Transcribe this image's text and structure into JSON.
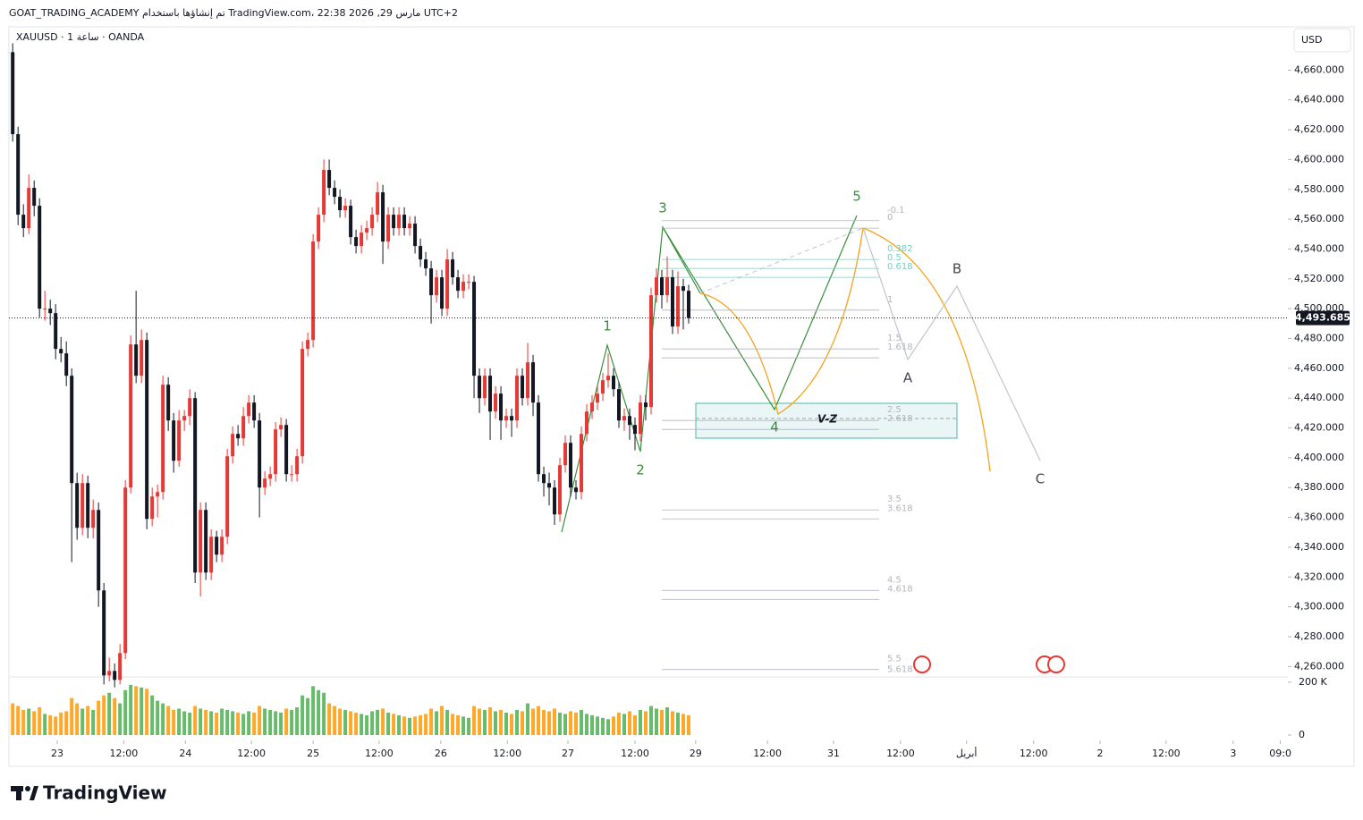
{
  "header": "GOAT_TRADING_ACADEMY تم إنشاؤها باستخدام TradingView.com، 22:38 2026 ,29 مارس UTC+2",
  "symbol": "XAUUSD · 1 ساعة · OANDA",
  "currency": "USD",
  "logo": "TradingView",
  "chart_data": {
    "type": "candlestick",
    "up_color": "#e53935",
    "down_color": "#131722",
    "ylim": [
      4253,
      4689
    ],
    "yticks": [
      {
        "value": 4660,
        "label": "4,660.000"
      },
      {
        "value": 4640,
        "label": "4,640.000"
      },
      {
        "value": 4620,
        "label": "4,620.000"
      },
      {
        "value": 4600,
        "label": "4,600.000"
      },
      {
        "value": 4580,
        "label": "4,580.000"
      },
      {
        "value": 4560,
        "label": "4,560.000"
      },
      {
        "value": 4540,
        "label": "4,540.000"
      },
      {
        "value": 4520,
        "label": "4,520.000"
      },
      {
        "value": 4500,
        "label": "4,500.000"
      },
      {
        "value": 4480,
        "label": "4,480.000"
      },
      {
        "value": 4460,
        "label": "4,460.000"
      },
      {
        "value": 4440,
        "label": "4,440.000"
      },
      {
        "value": 4420,
        "label": "4,420.000"
      },
      {
        "value": 4400,
        "label": "4,400.000"
      },
      {
        "value": 4380,
        "label": "4,380.000"
      },
      {
        "value": 4360,
        "label": "4,360.000"
      },
      {
        "value": 4340,
        "label": "4,340.000"
      },
      {
        "value": 4320,
        "label": "4,320.000"
      },
      {
        "value": 4300,
        "label": "4,300.000"
      },
      {
        "value": 4280,
        "label": "4,280.000"
      },
      {
        "value": 4260,
        "label": "4,260.000"
      }
    ],
    "xlim": [
      -0.7,
      237.7
    ],
    "xticks": [
      {
        "value": 8.3,
        "label": "23"
      },
      {
        "value": 20.7,
        "label": "12:00"
      },
      {
        "value": 32.2,
        "label": "24"
      },
      {
        "value": 44.5,
        "label": "12:00"
      },
      {
        "value": 56,
        "label": "25"
      },
      {
        "value": 68.3,
        "label": "12:00"
      },
      {
        "value": 79.8,
        "label": "26"
      },
      {
        "value": 92.2,
        "label": "12:00"
      },
      {
        "value": 103.5,
        "label": "27"
      },
      {
        "value": 116,
        "label": "12:00"
      },
      {
        "value": 127.3,
        "label": "29"
      },
      {
        "value": 140.7,
        "label": "12:00"
      },
      {
        "value": 153,
        "label": "31"
      },
      {
        "value": 165.5,
        "label": "12:00"
      },
      {
        "value": 177.8,
        "label": "أبريل"
      },
      {
        "value": 190.3,
        "label": "12:00"
      },
      {
        "value": 202.7,
        "label": "2"
      },
      {
        "value": 215,
        "label": "12:00"
      },
      {
        "value": 227.5,
        "label": "3"
      },
      {
        "value": 236.3,
        "label": "09:0"
      }
    ],
    "last_price": {
      "value": 4493.685,
      "label": "4,493.685"
    },
    "ohlc": [
      [
        4672,
        4678,
        4612,
        4617
      ],
      [
        4617,
        4622,
        4556,
        4563
      ],
      [
        4563,
        4570,
        4548,
        4554
      ],
      [
        4554,
        4590,
        4550,
        4581
      ],
      [
        4581,
        4586,
        4562,
        4569
      ],
      [
        4569,
        4574,
        4494,
        4500
      ],
      [
        4500,
        4512,
        4492,
        4500
      ],
      [
        4500,
        4506,
        4489,
        4497
      ],
      [
        4497,
        4503,
        4466,
        4473
      ],
      [
        4473,
        4481,
        4464,
        4470
      ],
      [
        4470,
        4478,
        4448,
        4455
      ],
      [
        4455,
        4460,
        4330,
        4383
      ],
      [
        4383,
        4390,
        4345,
        4353
      ],
      [
        4353,
        4389,
        4348,
        4383
      ],
      [
        4383,
        4388,
        4346,
        4353
      ],
      [
        4353,
        4372,
        4346,
        4365
      ],
      [
        4365,
        4370,
        4300,
        4311
      ],
      [
        4311,
        4316,
        4248,
        4254
      ],
      [
        4254,
        4266,
        4250,
        4257
      ],
      [
        4257,
        4262,
        4246,
        4251
      ],
      [
        4251,
        4275,
        4248,
        4269
      ],
      [
        4269,
        4385,
        4265,
        4380
      ],
      [
        4380,
        4482,
        4376,
        4476
      ],
      [
        4476,
        4512,
        4450,
        4455
      ],
      [
        4455,
        4486,
        4450,
        4479
      ],
      [
        4479,
        4484,
        4352,
        4359
      ],
      [
        4359,
        4380,
        4354,
        4374
      ],
      [
        4374,
        4382,
        4360,
        4377
      ],
      [
        4377,
        4455,
        4372,
        4449
      ],
      [
        4449,
        4454,
        4418,
        4425
      ],
      [
        4425,
        4430,
        4390,
        4398
      ],
      [
        4398,
        4432,
        4394,
        4425
      ],
      [
        4425,
        4432,
        4418,
        4428
      ],
      [
        4428,
        4446,
        4422,
        4440
      ],
      [
        4440,
        4444,
        4316,
        4323
      ],
      [
        4323,
        4370,
        4307,
        4365
      ],
      [
        4365,
        4370,
        4318,
        4323
      ],
      [
        4323,
        4352,
        4318,
        4347
      ],
      [
        4347,
        4351,
        4330,
        4335
      ],
      [
        4335,
        4352,
        4330,
        4347
      ],
      [
        4347,
        4406,
        4342,
        4401
      ],
      [
        4401,
        4421,
        4396,
        4416
      ],
      [
        4416,
        4422,
        4408,
        4413
      ],
      [
        4413,
        4434,
        4408,
        4428
      ],
      [
        4428,
        4442,
        4423,
        4437
      ],
      [
        4437,
        4442,
        4420,
        4425
      ],
      [
        4425,
        4430,
        4360,
        4380
      ],
      [
        4380,
        4391,
        4375,
        4386
      ],
      [
        4386,
        4394,
        4381,
        4389
      ],
      [
        4389,
        4424,
        4384,
        4419
      ],
      [
        4419,
        4427,
        4414,
        4422
      ],
      [
        4422,
        4426,
        4384,
        4389
      ],
      [
        4389,
        4395,
        4384,
        4389
      ],
      [
        4389,
        4406,
        4384,
        4401
      ],
      [
        4401,
        4478,
        4396,
        4473
      ],
      [
        4473,
        4484,
        4468,
        4479
      ],
      [
        4479,
        4550,
        4474,
        4545
      ],
      [
        4545,
        4568,
        4540,
        4563
      ],
      [
        4563,
        4600,
        4558,
        4593
      ],
      [
        4593,
        4600,
        4576,
        4581
      ],
      [
        4581,
        4586,
        4570,
        4575
      ],
      [
        4575,
        4580,
        4561,
        4566
      ],
      [
        4566,
        4574,
        4561,
        4569
      ],
      [
        4569,
        4573,
        4543,
        4548
      ],
      [
        4548,
        4553,
        4537,
        4542
      ],
      [
        4542,
        4556,
        4537,
        4551
      ],
      [
        4551,
        4559,
        4546,
        4554
      ],
      [
        4554,
        4568,
        4549,
        4563
      ],
      [
        4563,
        4585,
        4558,
        4578
      ],
      [
        4578,
        4583,
        4530,
        4545
      ],
      [
        4545,
        4568,
        4540,
        4563
      ],
      [
        4563,
        4568,
        4549,
        4554
      ],
      [
        4554,
        4568,
        4549,
        4563
      ],
      [
        4563,
        4568,
        4549,
        4554
      ],
      [
        4554,
        4562,
        4549,
        4557
      ],
      [
        4557,
        4562,
        4537,
        4542
      ],
      [
        4542,
        4547,
        4528,
        4533
      ],
      [
        4533,
        4538,
        4522,
        4527
      ],
      [
        4527,
        4532,
        4490,
        4509
      ],
      [
        4509,
        4526,
        4504,
        4521
      ],
      [
        4521,
        4526,
        4495,
        4500
      ],
      [
        4500,
        4540,
        4495,
        4533
      ],
      [
        4533,
        4538,
        4516,
        4521
      ],
      [
        4521,
        4526,
        4507,
        4512
      ],
      [
        4512,
        4523,
        4507,
        4518
      ],
      [
        4518,
        4523,
        4513,
        4518
      ],
      [
        4518,
        4522,
        4440,
        4455
      ],
      [
        4455,
        4460,
        4430,
        4440
      ],
      [
        4440,
        4460,
        4435,
        4455
      ],
      [
        4455,
        4460,
        4412,
        4431
      ],
      [
        4431,
        4448,
        4426,
        4443
      ],
      [
        4443,
        4448,
        4412,
        4425
      ],
      [
        4425,
        4433,
        4420,
        4428
      ],
      [
        4428,
        4433,
        4414,
        4425
      ],
      [
        4425,
        4460,
        4420,
        4455
      ],
      [
        4455,
        4460,
        4435,
        4440
      ],
      [
        4440,
        4477,
        4435,
        4464
      ],
      [
        4464,
        4469,
        4428,
        4437
      ],
      [
        4437,
        4442,
        4384,
        4389
      ],
      [
        4389,
        4394,
        4374,
        4383
      ],
      [
        4383,
        4390,
        4368,
        4380
      ],
      [
        4380,
        4385,
        4355,
        4362
      ],
      [
        4362,
        4400,
        4357,
        4395
      ],
      [
        4395,
        4415,
        4390,
        4410
      ],
      [
        4410,
        4415,
        4374,
        4380
      ],
      [
        4380,
        4385,
        4372,
        4377
      ],
      [
        4377,
        4421,
        4372,
        4416
      ],
      [
        4416,
        4436,
        4411,
        4431
      ],
      [
        4431,
        4442,
        4426,
        4437
      ],
      [
        4437,
        4448,
        4432,
        4443
      ],
      [
        4443,
        4457,
        4438,
        4452
      ],
      [
        4452,
        4470,
        4447,
        4455
      ],
      [
        4455,
        4460,
        4441,
        4446
      ],
      [
        4446,
        4451,
        4420,
        4425
      ],
      [
        4425,
        4433,
        4418,
        4428
      ],
      [
        4428,
        4433,
        4412,
        4422
      ],
      [
        4422,
        4427,
        4405,
        4416
      ],
      [
        4416,
        4442,
        4411,
        4437
      ],
      [
        4437,
        4442,
        4425,
        4434
      ],
      [
        4434,
        4514,
        4429,
        4509
      ],
      [
        4509,
        4527,
        4504,
        4521
      ],
      [
        4521,
        4526,
        4500,
        4509
      ],
      [
        4509,
        4535,
        4504,
        4521
      ],
      [
        4521,
        4526,
        4483,
        4488
      ],
      [
        4488,
        4525,
        4483,
        4515
      ],
      [
        4515,
        4520,
        4486,
        4512
      ],
      [
        4512,
        4516,
        4490,
        4493.685
      ]
    ],
    "volume": {
      "up_color": "#4caf50",
      "down_color": "#ff9800",
      "ylim": [
        0,
        220
      ],
      "yticks": [
        {
          "value": 200,
          "label": "200 K"
        },
        0
      ],
      "values": [
        120,
        110,
        95,
        100,
        90,
        105,
        80,
        75,
        70,
        85,
        90,
        140,
        120,
        100,
        110,
        95,
        130,
        150,
        160,
        140,
        120,
        170,
        190,
        185,
        180,
        175,
        150,
        130,
        120,
        110,
        95,
        100,
        90,
        85,
        110,
        100,
        95,
        90,
        85,
        100,
        95,
        90,
        85,
        80,
        90,
        85,
        110,
        100,
        95,
        90,
        85,
        100,
        95,
        105,
        150,
        140,
        185,
        170,
        160,
        120,
        110,
        100,
        95,
        90,
        85,
        80,
        75,
        90,
        95,
        100,
        85,
        80,
        75,
        70,
        65,
        70,
        75,
        80,
        100,
        90,
        110,
        95,
        80,
        75,
        70,
        65,
        110,
        100,
        95,
        105,
        90,
        95,
        85,
        80,
        95,
        90,
        120,
        100,
        110,
        95,
        90,
        100,
        85,
        80,
        90,
        85,
        95,
        80,
        75,
        70,
        65,
        60,
        70,
        85,
        80,
        90,
        75,
        95,
        90,
        110,
        100,
        95,
        105,
        90,
        85,
        80,
        75
      ]
    },
    "fib_levels": [
      {
        "level": -0.1,
        "price": 4559
      },
      {
        "level": 0,
        "price": 4554
      },
      {
        "level": 0.382,
        "price": 4533
      },
      {
        "level": 0.5,
        "price": 4527
      },
      {
        "level": 0.618,
        "price": 4521
      },
      {
        "level": 1,
        "price": 4499
      },
      {
        "level": 1.5,
        "price": 4473
      },
      {
        "level": 1.618,
        "price": 4467
      },
      {
        "level": 2.5,
        "price": 4425
      },
      {
        "level": 2.618,
        "price": 4419
      },
      {
        "level": 3.5,
        "price": 4365
      },
      {
        "level": 3.618,
        "price": 4359
      },
      {
        "level": 4.5,
        "price": 4311
      },
      {
        "level": 4.618,
        "price": 4305
      },
      {
        "level": 5.5,
        "price": 4258
      },
      {
        "level": 5.618,
        "price": 4251
      }
    ],
    "wave_labels": [
      "1",
      "2",
      "3",
      "4",
      "5",
      "A",
      "B",
      "C"
    ],
    "zone_label": "V-Z"
  }
}
